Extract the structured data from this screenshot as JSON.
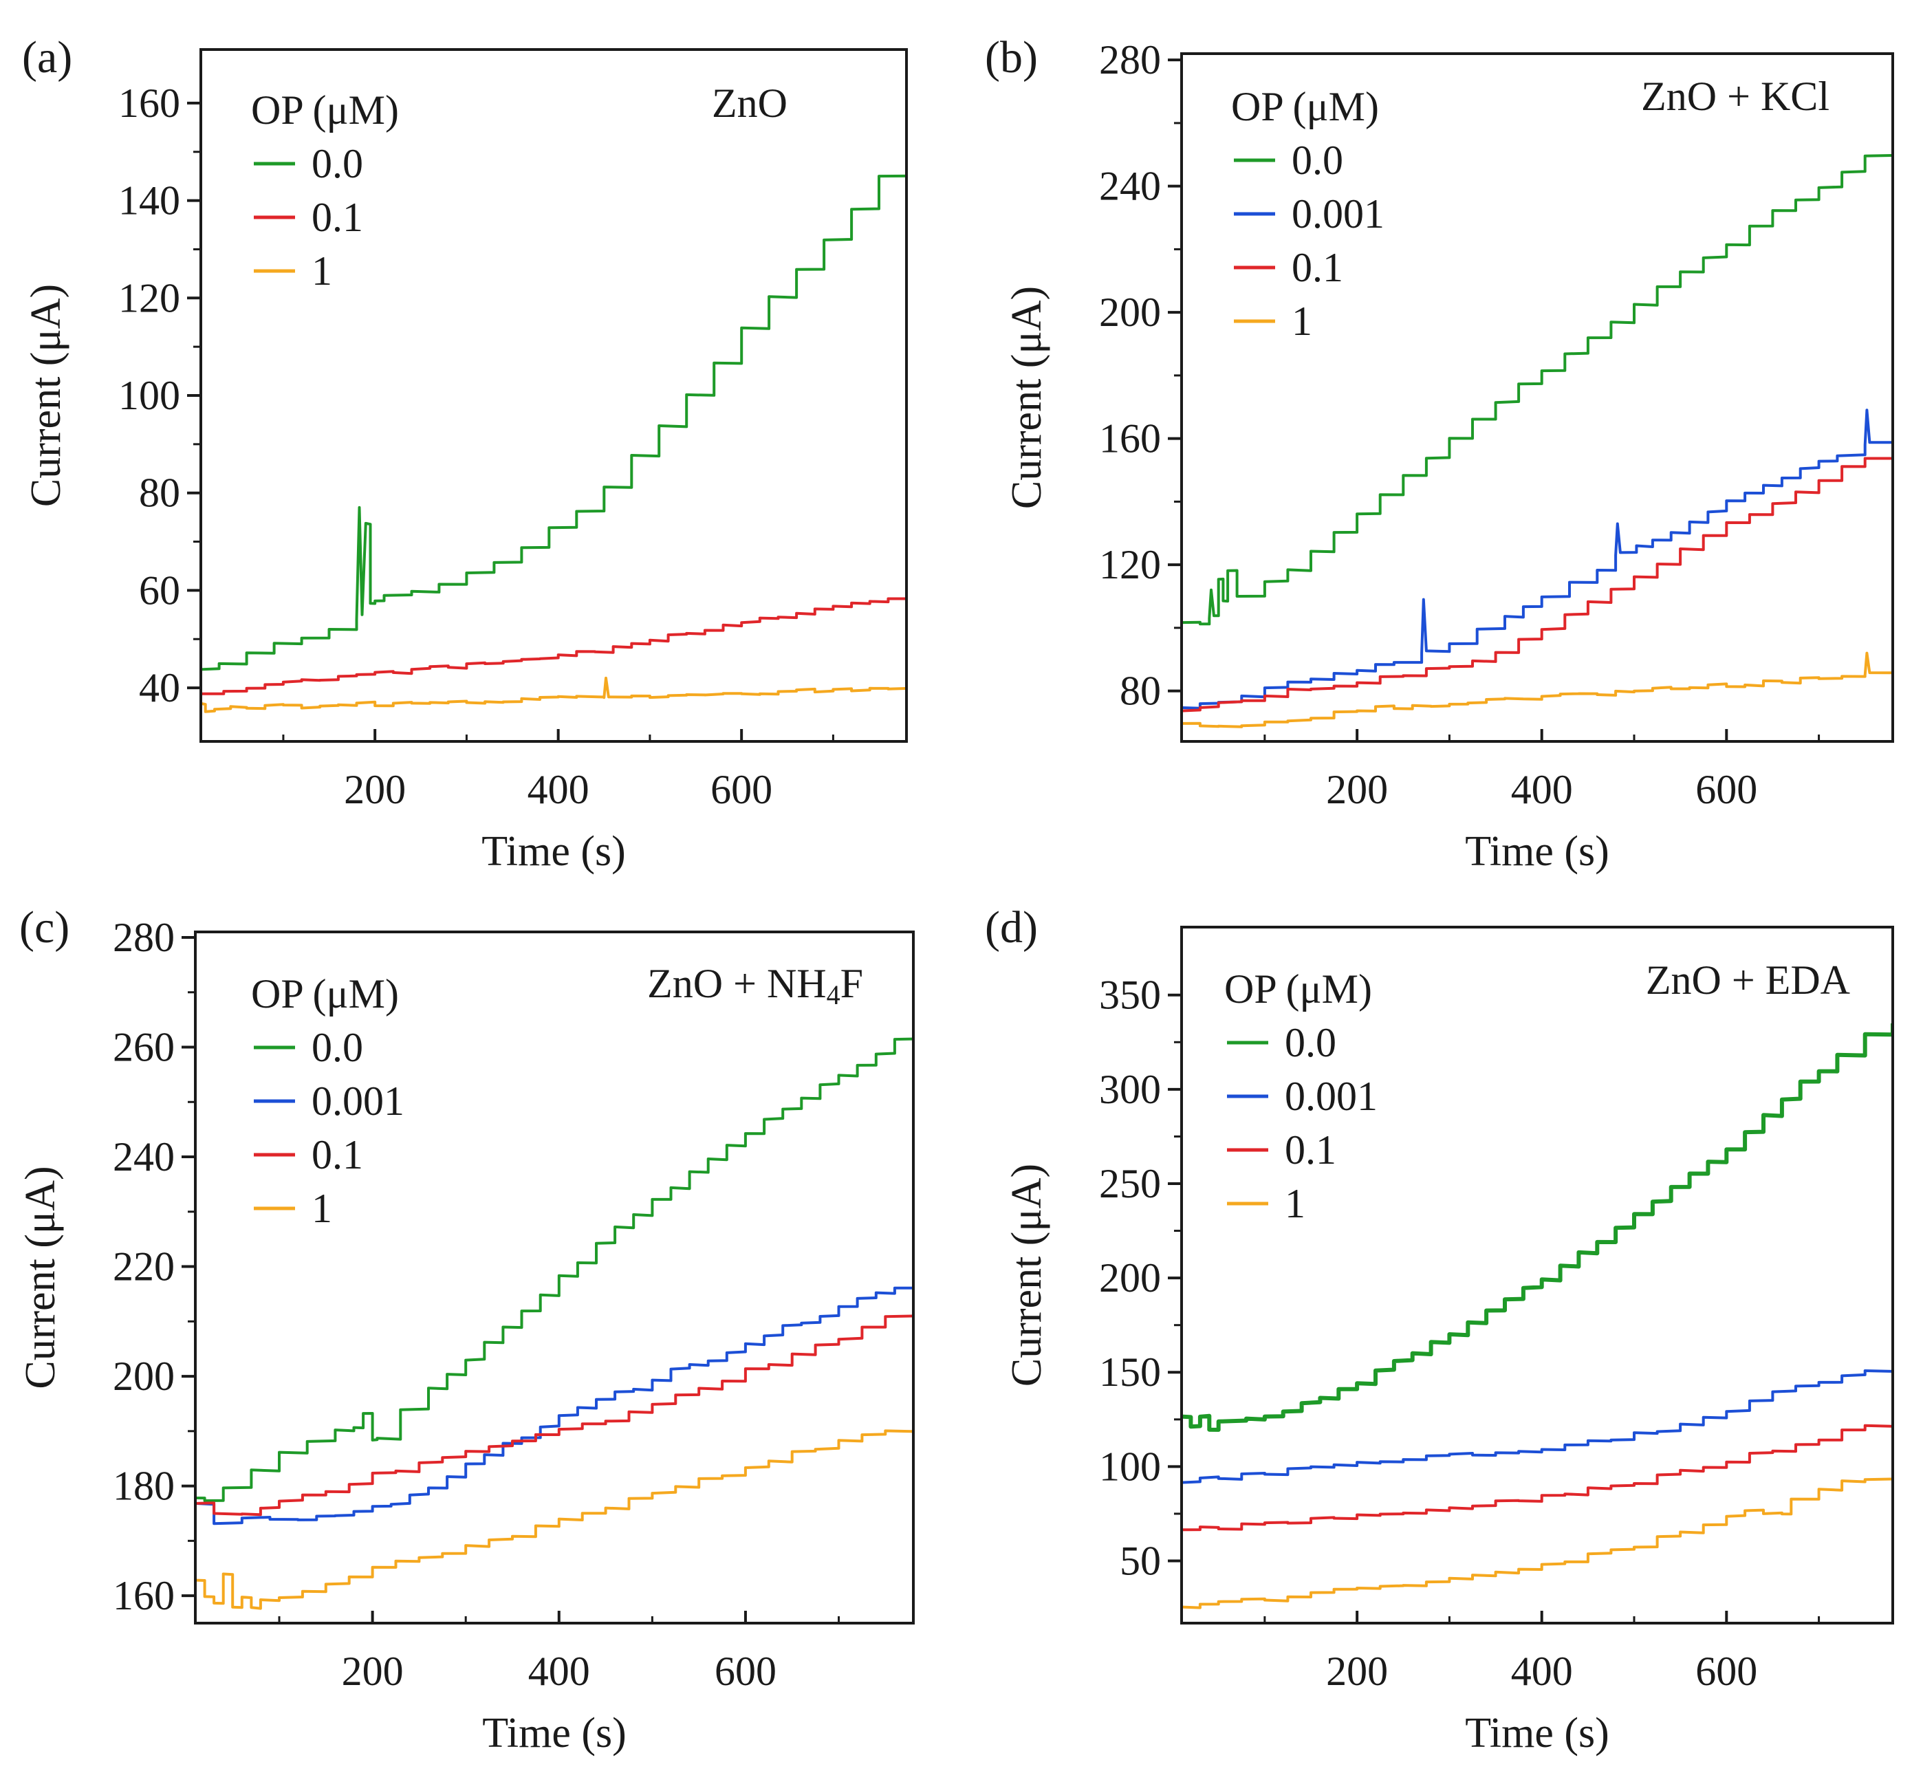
{
  "chart_data": [
    {
      "panel": "(a)",
      "type": "line",
      "title": "",
      "annotation": "ZnO",
      "xlabel": "Time (s)",
      "ylabel": "Current (μA)",
      "xlim": [
        10,
        780
      ],
      "ylim": [
        29,
        171
      ],
      "x_ticks": [
        200,
        400,
        600
      ],
      "x_tick_labels": [
        "200",
        "400",
        "600"
      ],
      "y_ticks": [
        40,
        60,
        80,
        100,
        120,
        140,
        160
      ],
      "y_tick_labels": [
        "40",
        "60",
        "80",
        "100",
        "120",
        "140",
        "160"
      ],
      "legend": {
        "title": "OP (μM)",
        "position": "top-left"
      },
      "series": [
        {
          "name": "0.0",
          "color": "#1e9a28",
          "x": [
            10,
            30,
            60,
            90,
            120,
            150,
            180,
            183,
            186,
            190,
            195,
            200,
            210,
            240,
            270,
            300,
            330,
            360,
            390,
            420,
            450,
            480,
            510,
            540,
            570,
            600,
            630,
            660,
            690,
            720,
            750,
            780
          ],
          "y": [
            44,
            45,
            47,
            49,
            50.5,
            52,
            54,
            77,
            55,
            74,
            57,
            58,
            59,
            60,
            61,
            64,
            66,
            69,
            73,
            76,
            81,
            88,
            94,
            100,
            107,
            114,
            120,
            126,
            132,
            138,
            145,
            151
          ]
        },
        {
          "name": "0.1",
          "color": "#e0262a",
          "x": [
            10,
            60,
            120,
            180,
            240,
            300,
            360,
            420,
            480,
            540,
            600,
            660,
            720,
            780
          ],
          "y": [
            39,
            40,
            41.5,
            42.8,
            43.8,
            44.6,
            45.8,
            47.2,
            49,
            51.5,
            53.5,
            55.5,
            57,
            58.5
          ]
        },
        {
          "name": "1",
          "color": "#f5a81f",
          "x": [
            10,
            15,
            25,
            60,
            120,
            180,
            240,
            300,
            360,
            420,
            450,
            452,
            455,
            480,
            540,
            600,
            660,
            720,
            780
          ],
          "y": [
            37,
            35.5,
            36,
            36,
            36.2,
            36.5,
            36.8,
            37.2,
            37.5,
            38,
            38,
            42,
            38.2,
            38.3,
            38.5,
            39,
            39.3,
            39.6,
            40
          ]
        }
      ]
    },
    {
      "panel": "(b)",
      "type": "line",
      "title": "",
      "annotation": "ZnO + KCl",
      "xlabel": "Time (s)",
      "ylabel": "Current (μA)",
      "xlim": [
        10,
        780
      ],
      "ylim": [
        64,
        282
      ],
      "x_ticks": [
        200,
        400,
        600
      ],
      "x_tick_labels": [
        "200",
        "400",
        "600"
      ],
      "y_ticks": [
        80,
        120,
        160,
        200,
        240,
        280
      ],
      "y_tick_labels": [
        "80",
        "120",
        "160",
        "200",
        "240",
        "280"
      ],
      "legend": {
        "title": "OP (μM)",
        "position": "top-left"
      },
      "series": [
        {
          "name": "0.0",
          "color": "#1e9a28",
          "x": [
            10,
            30,
            40,
            42,
            45,
            50,
            55,
            60,
            70,
            100,
            150,
            200,
            250,
            300,
            350,
            400,
            450,
            500,
            550,
            600,
            650,
            700,
            750,
            780
          ],
          "y": [
            102,
            101,
            103,
            112,
            104,
            116,
            108,
            118,
            110,
            114,
            124,
            136,
            148,
            160,
            172,
            182,
            192,
            203,
            213,
            222,
            232,
            240,
            250,
            258
          ]
        },
        {
          "name": "0.001",
          "color": "#1c4fd6",
          "x": [
            10,
            50,
            100,
            150,
            200,
            240,
            270,
            272,
            275,
            300,
            330,
            360,
            400,
            430,
            460,
            480,
            482,
            485,
            520,
            560,
            600,
            640,
            680,
            720,
            750,
            752,
            755,
            780
          ],
          "y": [
            75,
            77,
            81,
            84,
            87,
            89,
            92,
            109,
            93,
            95,
            99,
            103,
            110,
            114,
            118,
            123,
            133,
            124,
            128,
            133,
            140,
            145,
            150,
            155,
            158,
            169,
            159,
            162
          ]
        },
        {
          "name": "0.1",
          "color": "#e0262a",
          "x": [
            10,
            50,
            100,
            150,
            200,
            250,
            300,
            350,
            400,
            450,
            500,
            550,
            600,
            650,
            700,
            750,
            780
          ],
          "y": [
            74,
            76,
            79,
            81,
            83,
            85,
            88,
            92,
            100,
            108,
            116,
            125,
            133,
            140,
            147,
            154,
            160
          ]
        },
        {
          "name": "1",
          "color": "#f5a81f",
          "x": [
            10,
            50,
            100,
            150,
            200,
            300,
            400,
            500,
            600,
            700,
            750,
            752,
            755,
            780
          ],
          "y": [
            70,
            69,
            70,
            72,
            74,
            76,
            78,
            80,
            82,
            84,
            85,
            92,
            86,
            87
          ]
        }
      ]
    },
    {
      "panel": "(c)",
      "type": "line",
      "title": "",
      "annotation": "ZnO + NH",
      "annotation_sub": "4",
      "annotation_tail": "F",
      "xlabel": "Time (s)",
      "ylabel": "Current (μA)",
      "xlim": [
        10,
        780
      ],
      "ylim": [
        155,
        281
      ],
      "x_ticks": [
        200,
        400,
        600
      ],
      "x_tick_labels": [
        "200",
        "400",
        "600"
      ],
      "y_ticks": [
        160,
        180,
        200,
        220,
        240,
        260,
        280
      ],
      "y_tick_labels": [
        "160",
        "180",
        "200",
        "220",
        "240",
        "260",
        "280"
      ],
      "legend": {
        "title": "OP (μM)",
        "position": "top-left"
      },
      "series": [
        {
          "name": "0.0",
          "color": "#1e9a28",
          "x": [
            10,
            20,
            40,
            70,
            100,
            130,
            160,
            180,
            190,
            200,
            205,
            230,
            260,
            300,
            340,
            380,
            420,
            460,
            500,
            540,
            580,
            620,
            660,
            700,
            740,
            780
          ],
          "y": [
            178,
            177,
            180,
            183,
            186,
            188,
            190,
            191,
            193,
            188,
            189,
            194,
            198,
            203,
            209,
            215,
            221,
            227,
            232,
            237,
            242,
            247,
            251,
            255,
            259,
            264
          ]
        },
        {
          "name": "0.001",
          "color": "#1c4fd6",
          "x": [
            10,
            30,
            60,
            90,
            120,
            160,
            200,
            240,
            280,
            320,
            360,
            400,
            440,
            480,
            520,
            560,
            600,
            640,
            680,
            720,
            760,
            780
          ],
          "y": [
            177,
            173,
            174,
            174,
            174,
            174.5,
            176,
            178,
            182,
            186,
            189,
            193,
            196,
            198,
            201,
            203,
            206,
            209,
            211,
            214,
            216,
            217
          ]
        },
        {
          "name": "0.1",
          "color": "#e0262a",
          "x": [
            10,
            30,
            60,
            100,
            150,
            200,
            250,
            300,
            350,
            400,
            450,
            500,
            550,
            600,
            650,
            700,
            750,
            780
          ],
          "y": [
            177,
            175,
            175,
            177,
            179,
            182,
            184,
            186,
            188,
            190,
            192,
            195,
            198,
            201,
            204,
            207,
            211,
            213
          ]
        },
        {
          "name": "1",
          "color": "#f5a81f",
          "x": [
            10,
            20,
            30,
            40,
            50,
            60,
            70,
            80,
            100,
            150,
            200,
            250,
            300,
            350,
            400,
            450,
            500,
            550,
            600,
            650,
            700,
            750,
            780
          ],
          "y": [
            163,
            160,
            159,
            164,
            158,
            160,
            158,
            159,
            160,
            162,
            165,
            167,
            169,
            171,
            174,
            176,
            179,
            181,
            183,
            186,
            188,
            190,
            192
          ]
        }
      ]
    },
    {
      "panel": "(d)",
      "type": "line",
      "title": "",
      "annotation": "ZnO + EDA",
      "xlabel": "Time (s)",
      "ylabel": "Current (μA)",
      "xlim": [
        10,
        780
      ],
      "ylim": [
        17,
        386
      ],
      "x_ticks": [
        200,
        400,
        600
      ],
      "x_tick_labels": [
        "200",
        "400",
        "600"
      ],
      "y_ticks": [
        50,
        100,
        150,
        200,
        250,
        300,
        350
      ],
      "y_tick_labels": [
        "50",
        "100",
        "150",
        "200",
        "250",
        "300",
        "350"
      ],
      "legend": {
        "title": "OP (μM)",
        "position": "top-left"
      },
      "series": [
        {
          "name": "0.0",
          "color": "#1e9a28",
          "x": [
            10,
            20,
            30,
            40,
            50,
            80,
            120,
            160,
            200,
            240,
            280,
            320,
            360,
            400,
            440,
            480,
            520,
            560,
            600,
            640,
            680,
            720,
            750,
            780
          ],
          "y": [
            127,
            122,
            126,
            119,
            124,
            125,
            130,
            137,
            145,
            155,
            165,
            176,
            188,
            200,
            213,
            227,
            241,
            255,
            269,
            287,
            303,
            318,
            330,
            335
          ]
        },
        {
          "name": "0.001",
          "color": "#1c4fd6",
          "x": [
            10,
            50,
            100,
            150,
            200,
            250,
            300,
            350,
            400,
            450,
            500,
            550,
            600,
            650,
            700,
            750,
            780
          ],
          "y": [
            92,
            94,
            97,
            99,
            102,
            104,
            106,
            108,
            110,
            113,
            117,
            122,
            130,
            139,
            145,
            150,
            151
          ]
        },
        {
          "name": "0.1",
          "color": "#e0262a",
          "x": [
            10,
            50,
            100,
            150,
            200,
            250,
            300,
            350,
            400,
            450,
            500,
            550,
            600,
            650,
            700,
            750,
            780
          ],
          "y": [
            67,
            68,
            70,
            72,
            74,
            76,
            78,
            81,
            84,
            88,
            92,
            97,
            103,
            109,
            115,
            122,
            126
          ]
        },
        {
          "name": "1",
          "color": "#f5a81f",
          "x": [
            10,
            50,
            100,
            150,
            200,
            250,
            300,
            350,
            400,
            450,
            500,
            550,
            600,
            620,
            640,
            660,
            670,
            700,
            750,
            780
          ],
          "y": [
            26,
            28,
            30,
            33,
            35,
            38,
            41,
            44,
            48,
            53,
            58,
            66,
            74,
            77,
            75,
            74,
            82,
            89,
            94,
            95
          ]
        }
      ]
    }
  ]
}
